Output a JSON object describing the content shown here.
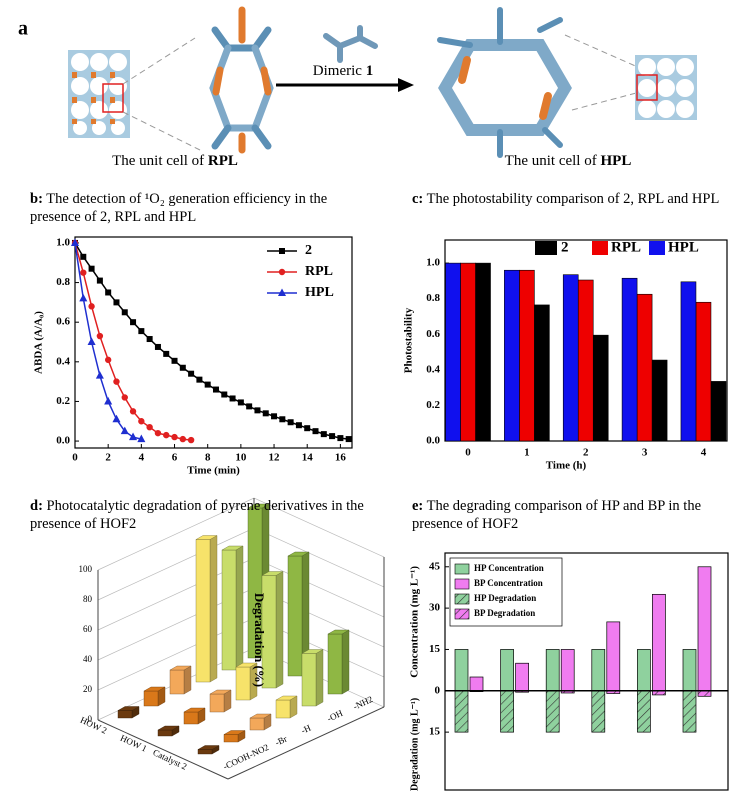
{
  "panel_a": {
    "label": "a",
    "left_caption": {
      "text": "The unit cell of ",
      "name": "RPL"
    },
    "arrow_label": {
      "text": "Dimeric ",
      "name": "1"
    },
    "right_caption": {
      "text": "The unit cell of ",
      "name": "HPL"
    }
  },
  "chart_data": [
    {
      "type": "line",
      "label": "b:",
      "title": "The detection of ¹O₂ generation efficiency in the presence of  2, RPL and HPL",
      "x_label": "Time (min)",
      "y_label": "ABDA (A/A₀)",
      "xlim": [
        0,
        16.7
      ],
      "xticks": [
        0,
        2,
        4,
        6,
        8,
        10,
        12,
        14,
        16
      ],
      "ylim": [
        -0.035,
        1.03
      ],
      "yticks": [
        {
          "value": 0,
          "label": "0.0"
        },
        0.2,
        0.4,
        0.6,
        0.8,
        {
          "value": 1,
          "label": "1.0"
        }
      ],
      "legend": "upper right",
      "series": [
        {
          "name": "2",
          "color": "#000000",
          "marker": "square",
          "x": [
            0,
            0.5,
            1,
            1.5,
            2,
            2.5,
            3,
            3.5,
            4,
            4.5,
            5,
            5.5,
            6,
            6.5,
            7,
            7.5,
            8,
            8.5,
            9,
            9.5,
            10,
            10.5,
            11,
            11.5,
            12,
            12.5,
            13,
            13.5,
            14,
            14.5,
            15,
            15.5,
            16,
            16.5
          ],
          "values": [
            1.0,
            0.93,
            0.87,
            0.81,
            0.75,
            0.7,
            0.65,
            0.6,
            0.555,
            0.515,
            0.475,
            0.44,
            0.405,
            0.37,
            0.34,
            0.31,
            0.285,
            0.26,
            0.235,
            0.215,
            0.195,
            0.175,
            0.155,
            0.14,
            0.125,
            0.11,
            0.095,
            0.08,
            0.065,
            0.05,
            0.035,
            0.025,
            0.015,
            0.01
          ]
        },
        {
          "name": "RPL",
          "color": "#e02020",
          "marker": "circle",
          "x": [
            0,
            0.5,
            1,
            1.5,
            2,
            2.5,
            3,
            3.5,
            4,
            4.5,
            5,
            5.5,
            6,
            6.5,
            7
          ],
          "values": [
            1.0,
            0.85,
            0.68,
            0.53,
            0.41,
            0.3,
            0.22,
            0.15,
            0.1,
            0.07,
            0.04,
            0.03,
            0.02,
            0.01,
            0.005
          ]
        },
        {
          "name": "HPL",
          "color": "#1f2fd0",
          "marker": "triangle",
          "x": [
            0,
            0.5,
            1,
            1.5,
            2,
            2.5,
            3,
            3.5,
            4
          ],
          "values": [
            1.0,
            0.72,
            0.5,
            0.33,
            0.2,
            0.11,
            0.05,
            0.02,
            0.01
          ]
        }
      ]
    },
    {
      "type": "bar",
      "label": "c:",
      "title": "The photostability comparison of 2, RPL and HPL",
      "x_label": "Time (h)",
      "y_label": "Photostability",
      "categories": [
        "0",
        "1",
        "2",
        "3",
        "4"
      ],
      "ylim": [
        0,
        1.13
      ],
      "yticks": [
        {
          "value": 0,
          "label": "0.0"
        },
        0.2,
        0.4,
        0.6,
        0.8,
        {
          "value": 1,
          "label": "1.0"
        }
      ],
      "legend": "top",
      "series": [
        {
          "name": "2",
          "color": "#000000",
          "values": [
            1.0,
            0.765,
            0.595,
            0.455,
            0.335
          ]
        },
        {
          "name": "RPL",
          "color": "#ee0000",
          "values": [
            1.0,
            0.96,
            0.905,
            0.825,
            0.78
          ]
        },
        {
          "name": "HPL",
          "color": "#1010ee",
          "values": [
            1.0,
            0.96,
            0.935,
            0.915,
            0.895
          ]
        }
      ]
    },
    {
      "type": "bar3d",
      "label": "d:",
      "title": "Photocatalytic degradation of pyrene derivatives in the presence of HOF2",
      "z_label": "Degradation (%)",
      "rows": [
        "HOW 2",
        "HOW 1",
        "Catalyst 2"
      ],
      "zlim": [
        0,
        100
      ],
      "zticks": [
        0,
        20,
        40,
        60,
        80,
        100
      ],
      "series": [
        {
          "name": "-COOH",
          "color": "#6b3a0f",
          "values": [
            5,
            4,
            3
          ]
        },
        {
          "name": "-NO2",
          "color": "#d9781a",
          "values": [
            10,
            8,
            5
          ]
        },
        {
          "name": "-Br",
          "color": "#f3a85a",
          "values": [
            16,
            12,
            8
          ]
        },
        {
          "name": "-H",
          "color": "#f7e36a",
          "values": [
            95,
            22,
            12
          ]
        },
        {
          "name": "-OH",
          "color": "#c8dd6a",
          "values": [
            80,
            75,
            35
          ]
        },
        {
          "name": "-NH2",
          "color": "#8fb744",
          "values": [
            100,
            80,
            40
          ]
        }
      ]
    },
    {
      "type": "diverging_bar",
      "label": "e:",
      "title": "The degrading comparison of HP and BP in the presence of HOF2",
      "y_label": "Concentration (mg L⁻¹)",
      "y2_label": "Degradation (mg L⁻¹)",
      "categories": [
        null,
        null,
        null,
        null,
        null,
        null
      ],
      "ylim": [
        -36,
        50
      ],
      "yticks": [
        {
          "value": -15,
          "label": "15"
        },
        0,
        15,
        30,
        45
      ],
      "legend": "upper left",
      "series": [
        {
          "name": "HP Concentration",
          "color": "#8fd19e",
          "values": [
            15,
            15,
            15,
            15,
            15,
            15
          ]
        },
        {
          "name": "BP Concentration",
          "color": "#f07cf0",
          "values": [
            5,
            10,
            15,
            25,
            35,
            45
          ]
        },
        {
          "name": "HP Degradation",
          "color": "#8fd19e",
          "pattern": "hatch",
          "values": [
            -15,
            -15,
            -15,
            -15,
            -15,
            -15
          ]
        },
        {
          "name": "BP Degradation",
          "color": "#f07cf0",
          "pattern": "hatch",
          "values": [
            -0.3,
            -0.5,
            -0.8,
            -1,
            -1.5,
            -2
          ]
        }
      ]
    }
  ]
}
